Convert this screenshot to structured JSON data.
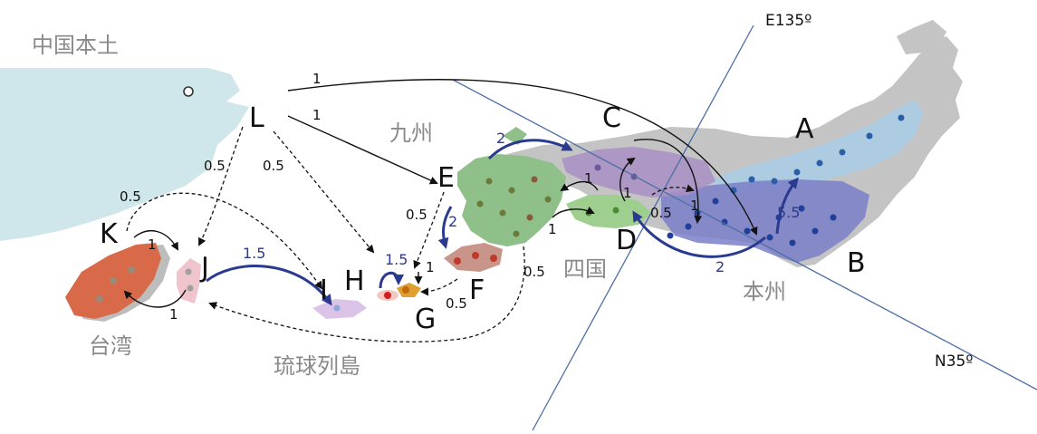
{
  "places": {
    "mainland_china": "中国本土",
    "kyushu": "九州",
    "shikoku": "四国",
    "honshu": "本州",
    "taiwan": "台湾",
    "ryukyu": "琉球列島"
  },
  "coords": {
    "longitude": "E135º",
    "latitude": "N35º"
  },
  "regions": [
    "A",
    "B",
    "C",
    "D",
    "E",
    "F",
    "G",
    "H",
    "I",
    "J",
    "K",
    "L"
  ],
  "migration_values": {
    "L_to_honshu": "1",
    "L_to_E": "1",
    "L_to_K": "0.5",
    "L_to_H": "0.5",
    "K_to_I": "0.5",
    "E_left": "0.5",
    "E_to_F": "2",
    "kyushu_to_C": "2",
    "kyushu_to_shikoku_upper": "1",
    "kyushu_to_shikoku_lower": "1",
    "shikoku_C_up": "1",
    "shikoku_C_mid": "0.5",
    "C_to_B": "1",
    "D_to_B": "2",
    "B_to_A": "5.5",
    "K_to_J": "1",
    "J_to_K": "1",
    "J_to_I": "1.5",
    "H_loop": "1.5",
    "F_to_H": "1",
    "F_to_G": "0.5",
    "E_to_J": "0.5"
  },
  "colors": {
    "sea": "#cfe6ea",
    "land": "#c4c4c4",
    "arrow_blue": "#2a3b8f",
    "region_A": "#a9cde6",
    "region_B": "#8f8ed0",
    "region_C": "#a98fc4",
    "kyushu": "#8fc08a",
    "taiwan": "#d86a4a",
    "region_F": "#c9948a"
  }
}
